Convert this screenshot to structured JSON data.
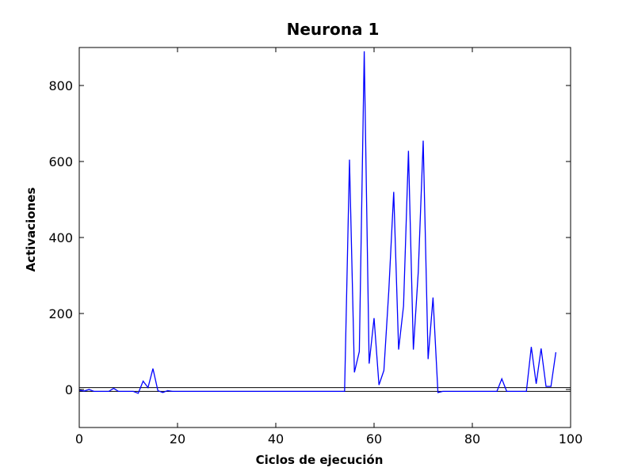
{
  "chart_data": {
    "type": "line",
    "title": "Neurona 1",
    "xlabel": "Ciclos de ejecución",
    "ylabel": "Activaciones",
    "xlim": [
      0,
      100
    ],
    "ylim": [
      -100,
      900
    ],
    "xticks": [
      0,
      20,
      40,
      60,
      80,
      100
    ],
    "yticks": [
      0,
      200,
      400,
      600,
      800
    ],
    "grid": false,
    "reference_lines": [
      5,
      -5
    ],
    "series": [
      {
        "color": "#0000ff",
        "x": [
          0,
          1,
          2,
          3,
          4,
          5,
          6,
          7,
          8,
          9,
          10,
          11,
          12,
          13,
          14,
          15,
          16,
          17,
          18,
          19,
          20,
          21,
          22,
          23,
          24,
          25,
          26,
          27,
          28,
          29,
          30,
          31,
          32,
          33,
          34,
          35,
          36,
          37,
          38,
          39,
          40,
          41,
          42,
          43,
          44,
          45,
          46,
          47,
          48,
          49,
          50,
          51,
          52,
          53,
          54,
          55,
          56,
          57,
          58,
          59,
          60,
          61,
          62,
          63,
          64,
          65,
          66,
          67,
          68,
          69,
          70,
          71,
          72,
          73,
          74,
          75,
          76,
          77,
          78,
          79,
          80,
          81,
          82,
          83,
          84,
          85,
          86,
          87,
          88,
          89,
          90,
          91,
          92,
          93,
          94,
          95,
          96,
          97
        ],
        "y": [
          -2,
          -4,
          0,
          -5,
          -5,
          -5,
          -5,
          3,
          -5,
          -5,
          -5,
          -5,
          -10,
          22,
          5,
          55,
          -3,
          -8,
          -3,
          -5,
          -5,
          -5,
          -5,
          -5,
          -5,
          -5,
          -5,
          -5,
          -5,
          -5,
          -5,
          -5,
          -5,
          -5,
          -5,
          -5,
          -5,
          -5,
          -5,
          -5,
          -5,
          -5,
          -5,
          -5,
          -5,
          -5,
          -5,
          -5,
          -5,
          -5,
          -5,
          -5,
          -5,
          -5,
          -5,
          605,
          45,
          100,
          890,
          68,
          188,
          12,
          50,
          260,
          520,
          105,
          220,
          628,
          105,
          310,
          655,
          80,
          242,
          -8,
          -5,
          -5,
          -5,
          -5,
          -5,
          -5,
          -5,
          -5,
          -5,
          -5,
          -5,
          -5,
          28,
          -5,
          -5,
          -5,
          -5,
          -5,
          112,
          15,
          108,
          8,
          8,
          98
        ]
      }
    ]
  }
}
